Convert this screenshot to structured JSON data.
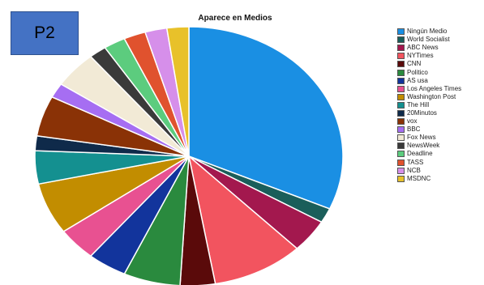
{
  "slide_label": "P2",
  "chart_data": {
    "type": "pie",
    "title": "Aparece en Medios",
    "legend_position": "right",
    "slices": [
      {
        "label": "Ningún Medio",
        "value": 34.5,
        "color": "#1a8fe3"
      },
      {
        "label": "World Socialist",
        "value": 2.0,
        "color": "#1a5e5a"
      },
      {
        "label": "ABC News",
        "value": 4.5,
        "color": "#a3184e"
      },
      {
        "label": "NYTimes",
        "value": 10.5,
        "color": "#f2545f"
      },
      {
        "label": "CNN",
        "value": 4.0,
        "color": "#5a0a0a"
      },
      {
        "label": "Politico",
        "value": 6.5,
        "color": "#2a8a3e"
      },
      {
        "label": "AS usa",
        "value": 4.5,
        "color": "#12349c"
      },
      {
        "label": "Los Angeles Times",
        "value": 4.5,
        "color": "#e85191"
      },
      {
        "label": "Washington Post",
        "value": 7.0,
        "color": "#c28d00"
      },
      {
        "label": "The Hill",
        "value": 4.5,
        "color": "#149090"
      },
      {
        "label": "20Minutos",
        "value": 2.0,
        "color": "#0f2a4a"
      },
      {
        "label": "vox",
        "value": 5.5,
        "color": "#8a3206"
      },
      {
        "label": "BBC",
        "value": 2.0,
        "color": "#a66ef2"
      },
      {
        "label": "Fox News",
        "value": 5.0,
        "color": "#f2ead6"
      },
      {
        "label": "NewsWeek",
        "value": 2.0,
        "color": "#3a3a3a"
      },
      {
        "label": "Deadline",
        "value": 2.5,
        "color": "#5ccc7e"
      },
      {
        "label": "TASS",
        "value": 2.5,
        "color": "#e0522e"
      },
      {
        "label": "NCB",
        "value": 2.5,
        "color": "#d68fea"
      },
      {
        "label": "MSDNC",
        "value": 2.5,
        "color": "#e8c12a"
      }
    ]
  }
}
